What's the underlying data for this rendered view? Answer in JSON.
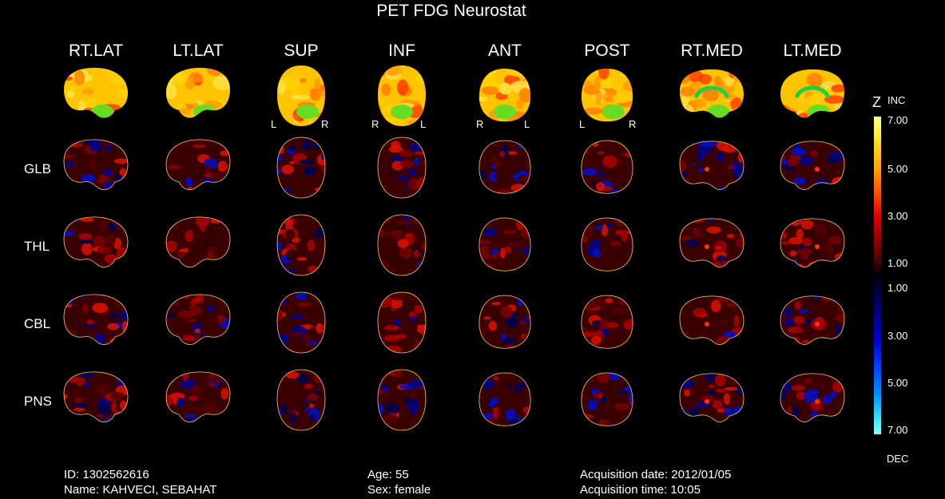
{
  "title": "PET FDG Neurostat",
  "views": [
    "RT.LAT",
    "LT.LAT",
    "SUP",
    "INF",
    "ANT",
    "POST",
    "RT.MED",
    "LT.MED"
  ],
  "rows": [
    "GLB",
    "THL",
    "CBL",
    "PNS"
  ],
  "orientation": {
    "sup": {
      "left": "L",
      "right": "R"
    },
    "inf": {
      "left": "R",
      "right": "L"
    },
    "ant": {
      "left": "R",
      "right": "L"
    },
    "post": {
      "left": "L",
      "right": "R"
    }
  },
  "colorbar": {
    "z_label": "Z",
    "inc_label": "INC",
    "dec_label": "DEC",
    "inc_ticks": [
      "7.00",
      "5.00",
      "3.00",
      "1.00"
    ],
    "dec_ticks": [
      "1.00",
      "3.00",
      "5.00",
      "7.00"
    ],
    "inc_colors": [
      "#ffff9a",
      "#ffaa00",
      "#dd0000",
      "#180000"
    ],
    "dec_colors": [
      "#000018",
      "#0000cc",
      "#0099ff",
      "#88ffff"
    ]
  },
  "patient": {
    "id": "ID: 1302562616",
    "name": "Name: KAHVECI, SEBAHAT",
    "age": "Age: 55",
    "sex": "Sex: female",
    "acq_date": "Acquisition date: 2012/01/05",
    "acq_time": "Acquisition time: 10:05"
  }
}
